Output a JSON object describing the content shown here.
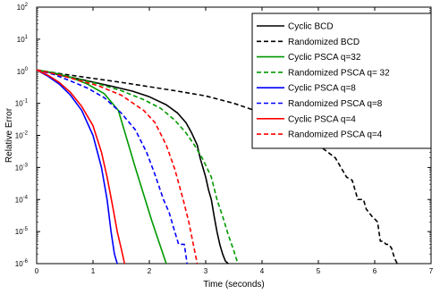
{
  "chart_data": {
    "type": "line",
    "title": "",
    "xlabel": "Time (seconds)",
    "ylabel": "Relative Error",
    "xlim": [
      0,
      7
    ],
    "ylim": [
      1e-06,
      100
    ],
    "yscale": "log",
    "grid": false,
    "legend_position": "top-right",
    "x_ticks": [
      "0",
      "1",
      "2",
      "3",
      "4",
      "5",
      "6",
      "7"
    ],
    "y_tick_exponents": [
      "-6",
      "-5",
      "-4",
      "-3",
      "-2",
      "-1",
      "0",
      "1",
      "2"
    ],
    "y_tick_base": "10",
    "series": [
      {
        "name": "Cyclic BCD",
        "color": "#000000",
        "dash": "solid",
        "x": [
          0,
          0.2,
          0.5,
          0.8,
          1.1,
          1.4,
          1.7,
          2.0,
          2.3,
          2.5,
          2.65,
          2.75,
          2.85,
          2.9,
          2.95,
          3.0,
          3.05,
          3.1,
          3.15,
          3.2,
          3.25,
          3.3,
          3.35,
          3.4
        ],
        "y": [
          1.1,
          0.95,
          0.7,
          0.55,
          0.42,
          0.32,
          0.24,
          0.16,
          0.09,
          0.05,
          0.025,
          0.012,
          0.005,
          0.002,
          0.001,
          0.0005,
          0.0002,
          0.0001,
          3e-05,
          1e-05,
          4e-06,
          2e-06,
          1.2e-06,
          1e-06
        ]
      },
      {
        "name": "Randomized BCD",
        "color": "#000000",
        "dash": "dashed",
        "x": [
          0,
          0.5,
          1.0,
          1.5,
          2.0,
          2.5,
          3.0,
          3.5,
          4.0,
          4.5,
          5.0,
          5.3,
          5.5,
          5.6,
          5.65,
          5.7,
          5.8,
          5.85,
          5.95,
          6.05,
          6.1,
          6.15,
          6.2,
          6.25,
          6.3,
          6.35,
          6.4
        ],
        "y": [
          1.1,
          0.8,
          0.6,
          0.45,
          0.33,
          0.24,
          0.17,
          0.1,
          0.05,
          0.02,
          0.005,
          0.002,
          0.0005,
          0.0004,
          0.0002,
          0.0001,
          0.0001,
          5e-05,
          3e-05,
          2e-05,
          5e-06,
          5e-06,
          4e-06,
          4e-06,
          3e-06,
          1.5e-06,
          1e-06
        ]
      },
      {
        "name": "Cyclic PSCA q=32",
        "color": "#009900",
        "dash": "solid",
        "x": [
          0,
          0.3,
          0.6,
          0.9,
          1.2,
          1.45,
          1.75,
          2.05,
          2.3
        ],
        "y": [
          1.1,
          0.9,
          0.65,
          0.4,
          0.2,
          0.06,
          0.001,
          2e-05,
          1e-06
        ]
      },
      {
        "name": "Randomized PSCA q= 32",
        "color": "#009900",
        "dash": "dashed",
        "x": [
          0,
          0.3,
          0.7,
          1.1,
          1.5,
          1.9,
          2.2,
          2.45,
          2.65,
          2.8,
          2.95,
          3.1,
          3.2,
          3.3,
          3.4,
          3.5,
          3.57
        ],
        "y": [
          1.1,
          0.9,
          0.6,
          0.4,
          0.25,
          0.13,
          0.07,
          0.03,
          0.012,
          0.005,
          0.0018,
          0.0005,
          0.0001,
          3e-05,
          8e-06,
          2.5e-06,
          1e-06
        ]
      },
      {
        "name": "Cyclic PSCA q=8",
        "color": "#0000ff",
        "dash": "solid",
        "x": [
          0,
          0.2,
          0.4,
          0.6,
          0.8,
          1.0,
          1.15,
          1.25,
          1.32,
          1.38,
          1.43
        ],
        "y": [
          1.1,
          0.7,
          0.4,
          0.18,
          0.06,
          0.01,
          0.001,
          0.0001,
          1e-05,
          2e-06,
          1e-06
        ]
      },
      {
        "name": "Randomized PSCA q=8",
        "color": "#0000ff",
        "dash": "dashed",
        "x": [
          0,
          0.3,
          0.6,
          0.9,
          1.2,
          1.5,
          1.75,
          1.95,
          2.1,
          2.25,
          2.35,
          2.45,
          2.52,
          2.62,
          2.67
        ],
        "y": [
          1.1,
          0.8,
          0.5,
          0.3,
          0.15,
          0.05,
          0.015,
          0.003,
          0.0006,
          0.0001,
          4e-05,
          1e-05,
          4e-06,
          4e-06,
          1e-06
        ]
      },
      {
        "name": "Cyclic PSCA q=4",
        "color": "#ff0000",
        "dash": "solid",
        "x": [
          0,
          0.2,
          0.4,
          0.6,
          0.8,
          1.0,
          1.15,
          1.25,
          1.35,
          1.43,
          1.5,
          1.56
        ],
        "y": [
          1.1,
          0.75,
          0.45,
          0.22,
          0.08,
          0.02,
          0.003,
          0.0005,
          6e-05,
          1e-05,
          3e-06,
          1e-06
        ]
      },
      {
        "name": "Randomized PSCA q=4",
        "color": "#ff0000",
        "dash": "dashed",
        "x": [
          0,
          0.3,
          0.7,
          1.1,
          1.5,
          1.9,
          2.1,
          2.3,
          2.45,
          2.6,
          2.7,
          2.78,
          2.85
        ],
        "y": [
          1.1,
          0.85,
          0.55,
          0.35,
          0.18,
          0.06,
          0.025,
          0.005,
          0.0009,
          0.0001,
          2e-05,
          4e-06,
          1e-06
        ]
      }
    ]
  }
}
